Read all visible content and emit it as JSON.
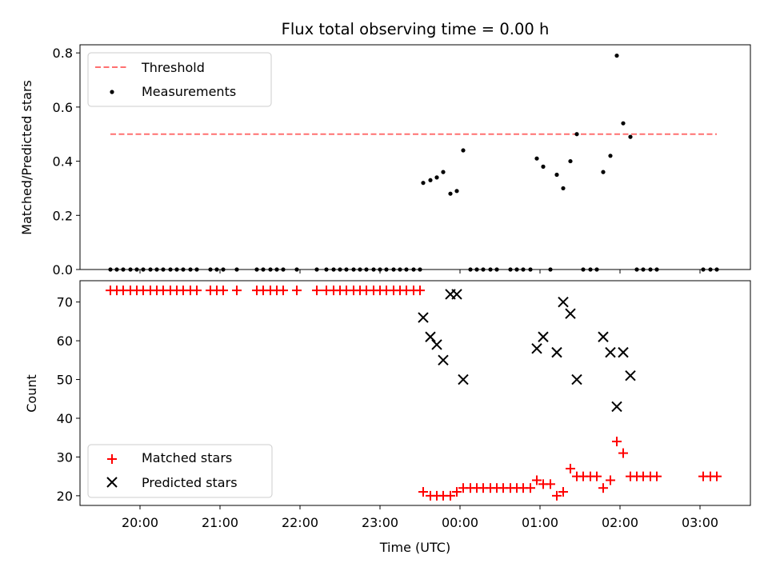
{
  "chart_data": [
    {
      "type": "scatter",
      "title": "Flux total observing time = 0.00 h",
      "xlabel": "",
      "ylabel": "Matched/Predicted stars",
      "xlim_hours": [
        19.25,
        27.63
      ],
      "ylim": [
        0,
        0.83
      ],
      "yticks": [
        "0.0",
        "0.2",
        "0.4",
        "0.6",
        "0.8"
      ],
      "legend": [
        "Threshold",
        "Measurements"
      ],
      "legend_position": "upper-left",
      "colors": {
        "threshold": "#ff7070",
        "measurements": "#000000"
      },
      "threshold": {
        "y": 0.5,
        "x_range": [
          19.63,
          27.21
        ]
      },
      "series": [
        {
          "name": "Measurements",
          "points": [
            [
              19.63,
              0
            ],
            [
              19.71,
              0
            ],
            [
              19.79,
              0
            ],
            [
              19.88,
              0
            ],
            [
              19.96,
              0
            ],
            [
              20.04,
              0
            ],
            [
              20.13,
              0
            ],
            [
              20.21,
              0
            ],
            [
              20.29,
              0
            ],
            [
              20.38,
              0
            ],
            [
              20.46,
              0
            ],
            [
              20.54,
              0
            ],
            [
              20.63,
              0
            ],
            [
              20.71,
              0
            ],
            [
              20.88,
              0
            ],
            [
              20.96,
              0
            ],
            [
              21.04,
              0
            ],
            [
              21.21,
              0
            ],
            [
              21.46,
              0
            ],
            [
              21.54,
              0
            ],
            [
              21.63,
              0
            ],
            [
              21.71,
              0
            ],
            [
              21.79,
              0
            ],
            [
              21.96,
              0
            ],
            [
              22.21,
              0
            ],
            [
              22.33,
              0
            ],
            [
              22.42,
              0
            ],
            [
              22.5,
              0
            ],
            [
              22.58,
              0
            ],
            [
              22.67,
              0
            ],
            [
              22.75,
              0
            ],
            [
              22.83,
              0
            ],
            [
              22.92,
              0
            ],
            [
              23,
              0
            ],
            [
              23.08,
              0
            ],
            [
              23.17,
              0
            ],
            [
              23.25,
              0
            ],
            [
              23.33,
              0
            ],
            [
              23.42,
              0
            ],
            [
              23.5,
              0
            ],
            [
              23.54,
              0.32
            ],
            [
              23.63,
              0.33
            ],
            [
              23.71,
              0.34
            ],
            [
              23.79,
              0.36
            ],
            [
              23.88,
              0.28
            ],
            [
              23.96,
              0.29
            ],
            [
              24.04,
              0.44
            ],
            [
              24.13,
              0
            ],
            [
              24.21,
              0
            ],
            [
              24.29,
              0
            ],
            [
              24.38,
              0
            ],
            [
              24.46,
              0
            ],
            [
              24.63,
              0
            ],
            [
              24.71,
              0
            ],
            [
              24.79,
              0
            ],
            [
              24.88,
              0
            ],
            [
              24.96,
              0.41
            ],
            [
              25.04,
              0.38
            ],
            [
              25.13,
              0
            ],
            [
              25.21,
              0.35
            ],
            [
              25.29,
              0.3
            ],
            [
              25.38,
              0.4
            ],
            [
              25.46,
              0.5
            ],
            [
              25.54,
              0
            ],
            [
              25.63,
              0
            ],
            [
              25.71,
              0
            ],
            [
              25.79,
              0.36
            ],
            [
              25.88,
              0.42
            ],
            [
              25.96,
              0.79
            ],
            [
              26.04,
              0.54
            ],
            [
              26.13,
              0.49
            ],
            [
              26.21,
              0
            ],
            [
              26.29,
              0
            ],
            [
              26.38,
              0
            ],
            [
              26.46,
              0
            ],
            [
              27.04,
              0
            ],
            [
              27.13,
              0
            ],
            [
              27.21,
              0
            ]
          ]
        }
      ]
    },
    {
      "type": "scatter",
      "title": "",
      "xlabel": "Time (UTC)",
      "ylabel": "Count",
      "xlim_hours": [
        19.25,
        27.63
      ],
      "ylim": [
        17.5,
        75.5
      ],
      "yticks": [
        "20",
        "30",
        "40",
        "50",
        "60",
        "70"
      ],
      "xticks": [
        "20:00",
        "21:00",
        "22:00",
        "23:00",
        "00:00",
        "01:00",
        "02:00",
        "03:00"
      ],
      "legend": [
        "Matched stars",
        "Predicted stars"
      ],
      "legend_position": "lower-left",
      "colors": {
        "matched": "#ff0000",
        "predicted": "#000000"
      },
      "series": [
        {
          "name": "Matched stars",
          "marker": "plus",
          "points": [
            [
              19.63,
              73
            ],
            [
              19.71,
              73
            ],
            [
              19.79,
              73
            ],
            [
              19.88,
              73
            ],
            [
              19.96,
              73
            ],
            [
              20.04,
              73
            ],
            [
              20.13,
              73
            ],
            [
              20.21,
              73
            ],
            [
              20.29,
              73
            ],
            [
              20.38,
              73
            ],
            [
              20.46,
              73
            ],
            [
              20.54,
              73
            ],
            [
              20.63,
              73
            ],
            [
              20.71,
              73
            ],
            [
              20.88,
              73
            ],
            [
              20.96,
              73
            ],
            [
              21.04,
              73
            ],
            [
              21.21,
              73
            ],
            [
              21.46,
              73
            ],
            [
              21.54,
              73
            ],
            [
              21.63,
              73
            ],
            [
              21.71,
              73
            ],
            [
              21.79,
              73
            ],
            [
              21.96,
              73
            ],
            [
              22.21,
              73
            ],
            [
              22.33,
              73
            ],
            [
              22.42,
              73
            ],
            [
              22.5,
              73
            ],
            [
              22.58,
              73
            ],
            [
              22.67,
              73
            ],
            [
              22.75,
              73
            ],
            [
              22.83,
              73
            ],
            [
              22.92,
              73
            ],
            [
              23,
              73
            ],
            [
              23.08,
              73
            ],
            [
              23.17,
              73
            ],
            [
              23.25,
              73
            ],
            [
              23.33,
              73
            ],
            [
              23.42,
              73
            ],
            [
              23.5,
              73
            ],
            [
              23.54,
              21
            ],
            [
              23.63,
              20
            ],
            [
              23.71,
              20
            ],
            [
              23.79,
              20
            ],
            [
              23.88,
              20
            ],
            [
              23.96,
              21
            ],
            [
              24.04,
              22
            ],
            [
              24.13,
              22
            ],
            [
              24.21,
              22
            ],
            [
              24.29,
              22
            ],
            [
              24.38,
              22
            ],
            [
              24.46,
              22
            ],
            [
              24.54,
              22
            ],
            [
              24.63,
              22
            ],
            [
              24.71,
              22
            ],
            [
              24.79,
              22
            ],
            [
              24.88,
              22
            ],
            [
              24.96,
              24
            ],
            [
              25.04,
              23
            ],
            [
              25.13,
              23
            ],
            [
              25.21,
              20
            ],
            [
              25.29,
              21
            ],
            [
              25.38,
              27
            ],
            [
              25.46,
              25
            ],
            [
              25.54,
              25
            ],
            [
              25.63,
              25
            ],
            [
              25.71,
              25
            ],
            [
              25.79,
              22
            ],
            [
              25.88,
              24
            ],
            [
              25.96,
              34
            ],
            [
              26.04,
              31
            ],
            [
              26.13,
              25
            ],
            [
              26.21,
              25
            ],
            [
              26.29,
              25
            ],
            [
              26.38,
              25
            ],
            [
              26.46,
              25
            ],
            [
              27.04,
              25
            ],
            [
              27.13,
              25
            ],
            [
              27.21,
              25
            ]
          ]
        },
        {
          "name": "Predicted stars",
          "marker": "x",
          "points": [
            [
              23.54,
              66
            ],
            [
              23.63,
              61
            ],
            [
              23.71,
              59
            ],
            [
              23.79,
              55
            ],
            [
              23.88,
              72
            ],
            [
              23.96,
              72
            ],
            [
              24.04,
              50
            ],
            [
              24.96,
              58
            ],
            [
              25.04,
              61
            ],
            [
              25.21,
              57
            ],
            [
              25.29,
              70
            ],
            [
              25.38,
              67
            ],
            [
              25.46,
              50
            ],
            [
              25.79,
              61
            ],
            [
              25.88,
              57
            ],
            [
              25.96,
              43
            ],
            [
              26.04,
              57
            ],
            [
              26.13,
              51
            ]
          ]
        }
      ]
    }
  ]
}
